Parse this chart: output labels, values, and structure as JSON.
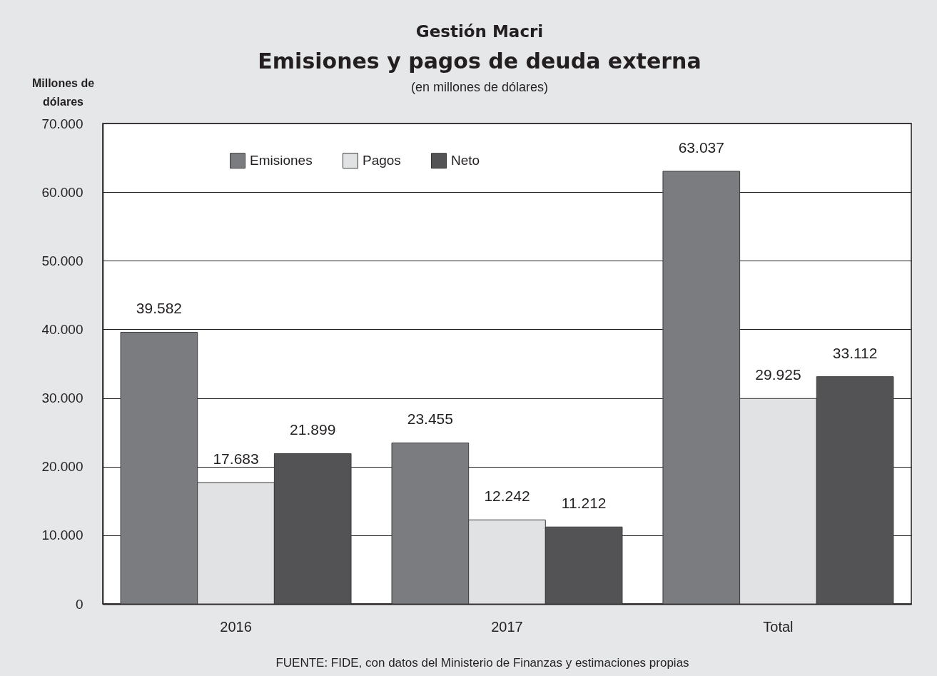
{
  "chart_data": {
    "type": "bar",
    "title": "Gestión Macri\nEmisiones y pagos de deuda externa",
    "subtitle": "(en millones de dólares)",
    "ylabel": "Millones de\ndólares",
    "annotations": [
      "FUENTE: FIDE, con datos del Ministerio de Finanzas y estimaciones propias"
    ],
    "categories": [
      "2016",
      "2017",
      "Total"
    ],
    "series": [
      {
        "name": "Emisiones",
        "color": "#7b7c80",
        "values": [
          39582,
          23455,
          63037
        ],
        "value_labels": [
          "39.582",
          "23.455",
          "63.037"
        ]
      },
      {
        "name": "Pagos",
        "color": "#e1e2e4",
        "values": [
          17683,
          12242,
          29925
        ],
        "value_labels": [
          "17.683",
          "12.242",
          "29.925"
        ]
      },
      {
        "name": "Neto",
        "color": "#535355",
        "values": [
          21899,
          11212,
          33112
        ],
        "value_labels": [
          "21.899",
          "11.212",
          "33.112"
        ]
      }
    ],
    "ylim": [
      0,
      70000
    ],
    "yticks": [
      0,
      {
        "value": 10000,
        "label": "10.000"
      },
      {
        "value": 20000,
        "label": "20.000"
      },
      {
        "value": 30000,
        "label": "30.000"
      },
      {
        "value": 40000,
        "label": "40.000"
      },
      {
        "value": 50000,
        "label": "50.000"
      },
      {
        "value": 60000,
        "label": "60.000"
      },
      {
        "value": 70000,
        "label": "70.000"
      }
    ],
    "grid": "y",
    "legend": "top left"
  }
}
